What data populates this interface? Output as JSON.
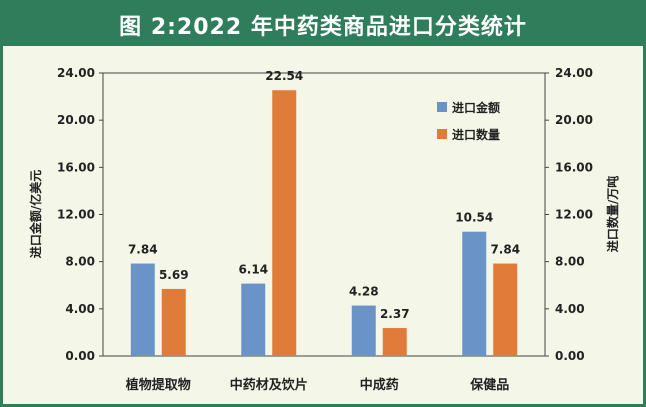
{
  "chart_data": {
    "type": "bar",
    "title": "图 2:2022 年中药类商品进口分类统计",
    "categories": [
      "植物提取物",
      "中药材及饮片",
      "中成药",
      "保健品"
    ],
    "series": [
      {
        "name": "进口金额",
        "color": "#6a93c8",
        "values": [
          7.84,
          6.14,
          4.28,
          10.54
        ]
      },
      {
        "name": "进口数量",
        "color": "#e07b39",
        "values": [
          5.69,
          22.54,
          2.37,
          7.84
        ]
      }
    ],
    "ylabel": "进口金额/亿美元",
    "y2label": "进口数量/万吨",
    "ylim": [
      0,
      24
    ],
    "y2lim": [
      0,
      24
    ],
    "yticks": [
      "0.00",
      "4.00",
      "8.00",
      "12.00",
      "16.00",
      "20.00",
      "24.00"
    ],
    "y2ticks": [
      "0.00",
      "4.00",
      "8.00",
      "12.00",
      "16.00",
      "20.00",
      "24.00"
    ],
    "grid": false,
    "legend": "top-right"
  }
}
